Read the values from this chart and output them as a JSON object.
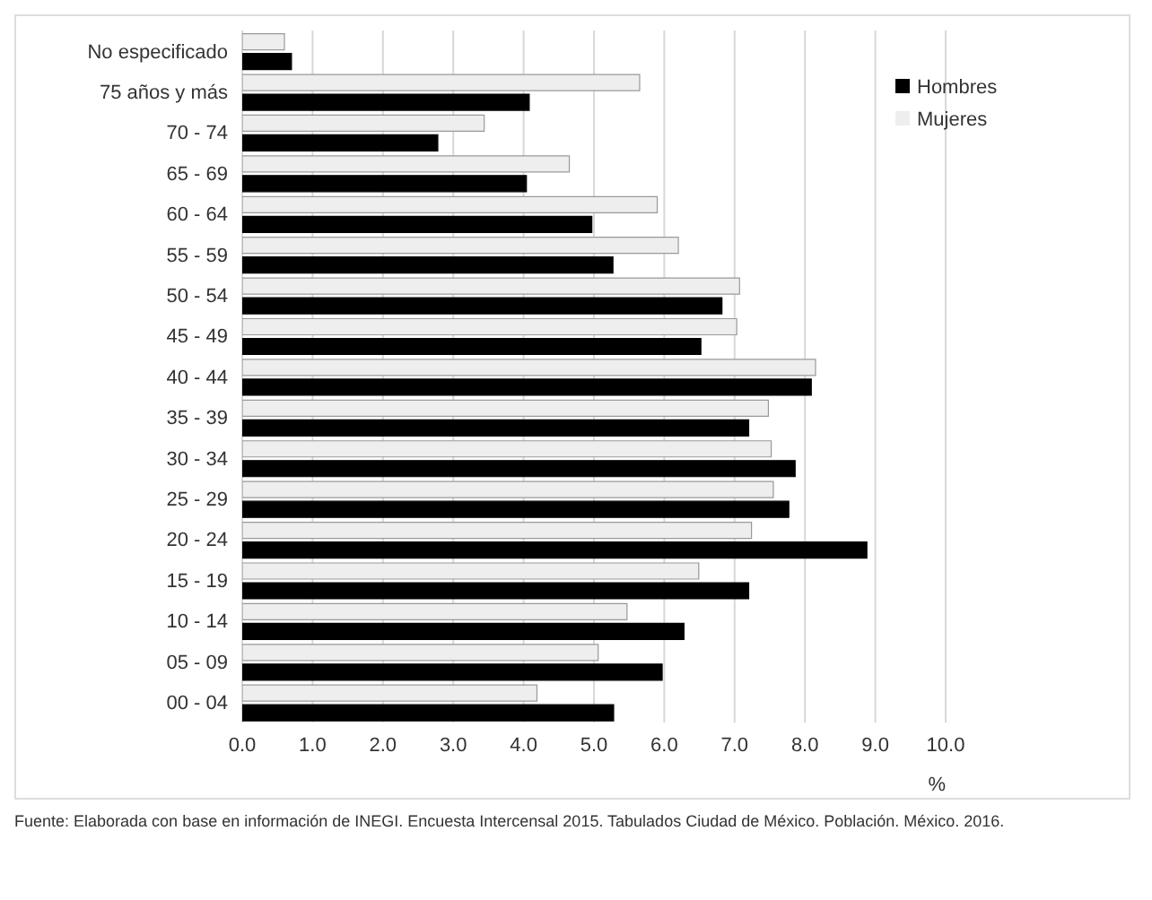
{
  "chart_data": {
    "type": "bar",
    "orientation": "horizontal",
    "xlabel": "%",
    "categories": [
      "No especificado",
      "75 años y más",
      "70 - 74",
      "65 - 69",
      "60 - 64",
      "55 - 59",
      "50 - 54",
      "45 - 49",
      "40 - 44",
      "35 - 39",
      "30 - 34",
      "25 - 29",
      "20 - 24",
      "15 - 19",
      "10 - 14",
      "05 - 09",
      "00 - 04"
    ],
    "series": [
      {
        "name": "Mujeres",
        "color": "#eeeeee",
        "values": [
          0.6,
          5.65,
          3.44,
          4.65,
          5.9,
          6.2,
          7.07,
          7.03,
          8.15,
          7.48,
          7.52,
          7.55,
          7.24,
          6.49,
          5.47,
          5.06,
          4.19
        ]
      },
      {
        "name": "Hombres",
        "color": "#000000",
        "values": [
          0.7,
          4.08,
          2.78,
          4.04,
          4.97,
          5.27,
          6.82,
          6.52,
          8.09,
          7.2,
          7.86,
          7.77,
          8.88,
          7.2,
          6.28,
          5.97,
          5.28
        ]
      }
    ],
    "xlim": [
      0,
      10
    ],
    "xticks": [
      {
        "value": 0,
        "label": "0.0"
      },
      {
        "value": 1,
        "label": "1.0"
      },
      {
        "value": 2,
        "label": "2.0"
      },
      {
        "value": 3,
        "label": "3.0"
      },
      {
        "value": 4,
        "label": "4.0"
      },
      {
        "value": 5,
        "label": "5.0"
      },
      {
        "value": 6,
        "label": "6.0"
      },
      {
        "value": 7,
        "label": "7.0"
      },
      {
        "value": 8,
        "label": "8.0"
      },
      {
        "value": 9,
        "label": "9.0"
      },
      {
        "value": 10,
        "label": "10.0"
      }
    ],
    "grid": "x",
    "legend": "top right",
    "annotations": [
      "Fuente: Elaborada con base en información de INEGI. Encuesta Intercensal 2015. Tabulados Ciudad de México. Población. México. 2016."
    ]
  }
}
